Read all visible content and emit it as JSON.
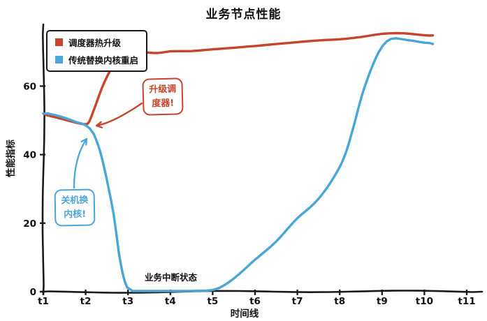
{
  "title": "业务节点性能",
  "chart_data": {
    "type": "line",
    "title": "业务节点性能",
    "xlabel": "时间线",
    "ylabel": "性能指标",
    "x_ticks": [
      "t1",
      "t2",
      "t3",
      "t4",
      "t5",
      "t6",
      "t7",
      "t8",
      "t9",
      "t10",
      "t11"
    ],
    "x_tick_values": [
      1,
      2,
      3,
      4,
      5,
      6,
      7,
      8,
      9,
      10,
      11
    ],
    "y_ticks": [
      0,
      20,
      40,
      60
    ],
    "xlim": [
      1,
      11
    ],
    "ylim": [
      0,
      78
    ],
    "grid": false,
    "background": "#ffffff",
    "axis_color": "#1a1a1a",
    "legend_position": "top-left",
    "series": [
      {
        "name": "调度器热升级",
        "color": "#c6452c",
        "x": [
          1,
          1.4,
          1.8,
          2,
          2.1,
          2.25,
          2.45,
          2.7,
          3,
          3.3,
          3.7,
          4,
          4.5,
          5,
          5.5,
          6,
          6.5,
          7,
          7.5,
          8,
          8.5,
          9,
          9.5,
          10,
          10.2
        ],
        "values": [
          52,
          50.8,
          49.3,
          48.8,
          49.5,
          54,
          61,
          67,
          69.5,
          70,
          69.6,
          70,
          70,
          70.6,
          71.3,
          72,
          72.6,
          73,
          73.3,
          73.5,
          74.2,
          75.3,
          75.6,
          75,
          74.8
        ]
      },
      {
        "name": "传统替换内核重启",
        "color": "#4aa5d8",
        "x": [
          1,
          1.4,
          1.8,
          2,
          2.2,
          2.4,
          2.6,
          2.8,
          3,
          3.25,
          3.5,
          4,
          4.5,
          5,
          5.3,
          5.6,
          6,
          6.5,
          7,
          7.5,
          8,
          8.3,
          8.6,
          8.9,
          9.2,
          9.6,
          10,
          10.2
        ],
        "values": [
          52,
          50.8,
          49.2,
          48.5,
          46,
          39,
          26,
          11,
          1.5,
          0.2,
          0,
          0,
          0,
          0.3,
          2,
          5,
          9.5,
          14.5,
          21,
          27,
          37,
          47,
          60,
          70,
          74,
          73.5,
          72.5,
          72.3
        ]
      }
    ],
    "annotations": [
      {
        "text": "升级调度器!",
        "color": "#c6452c"
      },
      {
        "text": "关机换内核!",
        "color": "#4aa5d8"
      },
      {
        "text": "业务中断状态",
        "color": "#111111"
      }
    ]
  }
}
